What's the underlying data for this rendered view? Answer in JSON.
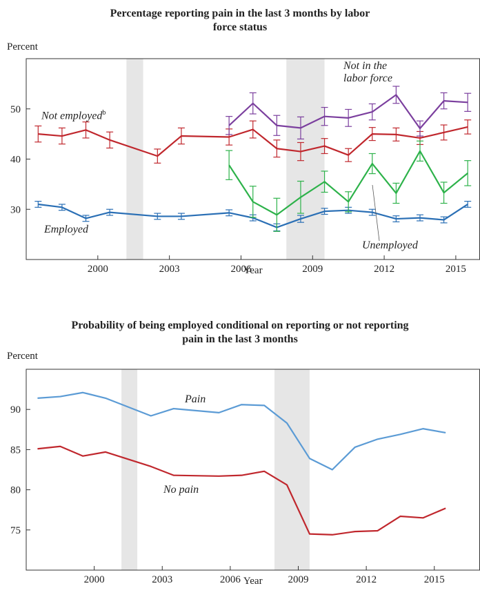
{
  "chart_data": [
    {
      "type": "line",
      "title": "Percentage reporting pain in the last 3 months by labor force status",
      "ylabel": "Percent",
      "xlabel": "Year",
      "xlim": [
        1997,
        2016
      ],
      "ylim": [
        20,
        60
      ],
      "xticks": [
        2000,
        2003,
        2006,
        2009,
        2012,
        2015
      ],
      "yticks": [
        30,
        40,
        50
      ],
      "shaded": [
        [
          2001.2,
          2001.9
        ],
        [
          2007.9,
          2009.5
        ]
      ],
      "x": [
        1997.5,
        1998.5,
        1999.5,
        2000.5,
        2002.5,
        2003.5,
        2005.5,
        2006.5,
        2007.5,
        2008.5,
        2009.5,
        2010.5,
        2011.5,
        2012.5,
        2013.5,
        2014.5,
        2015.5
      ],
      "series": [
        {
          "name": "Employed",
          "color": "#2a6fb5",
          "values": [
            31.0,
            30.4,
            28.2,
            29.4,
            28.6,
            28.6,
            29.3,
            28.3,
            26.4,
            28.1,
            29.6,
            29.8,
            29.4,
            28.1,
            28.3,
            27.9,
            31.0
          ],
          "errors": [
            0.6,
            0.6,
            0.6,
            0.6,
            0.6,
            0.6,
            0.6,
            0.6,
            0.7,
            0.7,
            0.6,
            0.6,
            0.6,
            0.6,
            0.6,
            0.6,
            0.6
          ]
        },
        {
          "name": "Not employed",
          "name_note": "b",
          "color": "#c0272d",
          "values": [
            45.0,
            44.6,
            45.8,
            43.8,
            40.6,
            44.6,
            44.4,
            45.9,
            42.1,
            41.5,
            42.6,
            40.8,
            45.0,
            44.9,
            44.2,
            45.3,
            46.4
          ],
          "errors": [
            1.6,
            1.6,
            1.6,
            1.6,
            1.4,
            1.6,
            1.6,
            1.7,
            1.7,
            1.8,
            1.5,
            1.3,
            1.3,
            1.3,
            1.3,
            1.5,
            1.4
          ]
        },
        {
          "name": "Not in the labor force",
          "color": "#7b3f9e",
          "values": [
            null,
            null,
            null,
            null,
            null,
            null,
            46.7,
            51.1,
            46.7,
            46.2,
            48.5,
            48.2,
            49.4,
            52.8,
            46.1,
            51.6,
            51.3
          ],
          "errors": [
            null,
            null,
            null,
            null,
            null,
            null,
            1.8,
            2.1,
            2.0,
            2.2,
            1.8,
            1.7,
            1.6,
            1.7,
            1.5,
            1.6,
            1.8
          ]
        },
        {
          "name": "Unemployed",
          "color": "#2db24a",
          "values": [
            null,
            null,
            null,
            null,
            null,
            null,
            38.8,
            31.5,
            28.9,
            32.4,
            35.5,
            31.5,
            39.1,
            33.2,
            41.6,
            33.3,
            37.2
          ],
          "errors": [
            null,
            null,
            null,
            null,
            null,
            null,
            2.9,
            3.1,
            3.3,
            3.2,
            2.1,
            2.0,
            2.0,
            2.0,
            2.0,
            2.1,
            2.5
          ]
        }
      ]
    },
    {
      "type": "line",
      "title": "Probability of being employed conditional on reporting or not reporting pain in the last 3 months",
      "ylabel": "Percent",
      "xlabel": "Year",
      "xlim": [
        1997,
        2017
      ],
      "ylim": [
        70,
        95
      ],
      "xticks": [
        2000,
        2003,
        2006,
        2009,
        2012,
        2015
      ],
      "yticks": [
        75,
        80,
        85,
        90
      ],
      "shaded": [
        [
          2001.2,
          2001.9
        ],
        [
          2007.95,
          2009.5
        ]
      ],
      "x": [
        1997.5,
        1998.5,
        1999.5,
        2000.5,
        2002.5,
        2003.5,
        2005.5,
        2006.5,
        2007.5,
        2008.5,
        2009.5,
        2010.5,
        2011.5,
        2012.5,
        2013.5,
        2014.5,
        2015.5
      ],
      "series": [
        {
          "name": "Pain",
          "color": "#5b9bd5",
          "values": [
            91.4,
            91.6,
            92.1,
            91.4,
            89.2,
            90.1,
            89.6,
            90.6,
            90.5,
            88.3,
            83.9,
            82.5,
            85.3,
            86.3,
            86.9,
            87.6,
            87.1
          ]
        },
        {
          "name": "No pain",
          "color": "#c0272d",
          "values": [
            85.1,
            85.4,
            84.2,
            84.7,
            82.9,
            81.8,
            81.7,
            81.8,
            82.3,
            80.6,
            74.5,
            74.4,
            74.8,
            74.9,
            76.7,
            76.5,
            77.7
          ]
        }
      ]
    }
  ]
}
